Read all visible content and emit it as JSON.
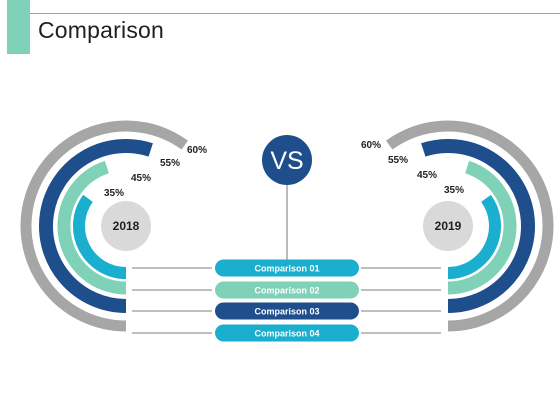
{
  "title": "Comparison",
  "vs_label": "VS",
  "colors": {
    "accent": "#7fd1b7",
    "ring_outer": "#a6a6a6",
    "ring_navy": "#1f4e8c",
    "ring_mint": "#7fd1b7",
    "ring_cyan": "#1aafcf",
    "center_circle": "#d9d9d9"
  },
  "left": {
    "year": "2018",
    "rings": [
      {
        "percent_label": "60%",
        "value": 60
      },
      {
        "percent_label": "55%",
        "value": 55
      },
      {
        "percent_label": "45%",
        "value": 45
      },
      {
        "percent_label": "35%",
        "value": 35
      }
    ]
  },
  "right": {
    "year": "2019",
    "rings": [
      {
        "percent_label": "60%",
        "value": 60
      },
      {
        "percent_label": "55%",
        "value": 55
      },
      {
        "percent_label": "45%",
        "value": 45
      },
      {
        "percent_label": "35%",
        "value": 35
      }
    ]
  },
  "comparisons": [
    {
      "label": "Comparison 01",
      "color": "#1aafcf"
    },
    {
      "label": "Comparison 02",
      "color": "#7fd1b7"
    },
    {
      "label": "Comparison 03",
      "color": "#1f4e8c"
    },
    {
      "label": "Comparison 04",
      "color": "#1aafcf"
    }
  ]
}
